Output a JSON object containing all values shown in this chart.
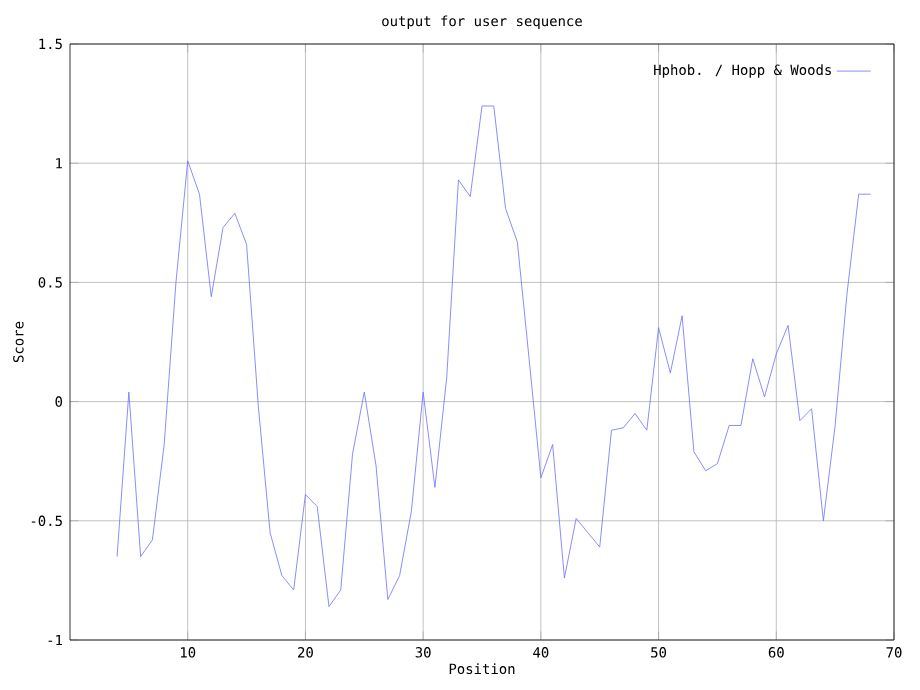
{
  "chart_data": {
    "type": "line",
    "title": "output for user sequence",
    "xlabel": "Position",
    "ylabel": "Score",
    "x": [
      4,
      5,
      6,
      7,
      8,
      9,
      10,
      11,
      12,
      13,
      14,
      15,
      16,
      17,
      18,
      19,
      20,
      21,
      22,
      23,
      24,
      25,
      26,
      27,
      28,
      29,
      30,
      31,
      32,
      33,
      34,
      35,
      36,
      37,
      38,
      39,
      40,
      41,
      42,
      43,
      44,
      45,
      46,
      47,
      48,
      49,
      50,
      51,
      52,
      53,
      54,
      55,
      56,
      57,
      58,
      59,
      60,
      61,
      62,
      63,
      64,
      65,
      66,
      67,
      68
    ],
    "series": [
      {
        "name": "Hphob. / Hopp & Woods",
        "color": "#6f6fff",
        "values": [
          -0.65,
          0.04,
          -0.65,
          -0.58,
          -0.18,
          0.5,
          1.01,
          0.87,
          0.44,
          0.73,
          0.79,
          0.66,
          -0.02,
          -0.55,
          -0.73,
          -0.79,
          -0.39,
          -0.44,
          -0.86,
          -0.79,
          -0.22,
          0.04,
          -0.27,
          -0.83,
          -0.73,
          -0.46,
          0.04,
          -0.36,
          0.1,
          0.93,
          0.86,
          1.24,
          1.24,
          0.81,
          0.67,
          0.18,
          -0.32,
          -0.18,
          -0.74,
          -0.49,
          -0.55,
          -0.61,
          -0.12,
          -0.11,
          -0.05,
          -0.12,
          0.31,
          0.12,
          0.36,
          -0.21,
          -0.29,
          -0.26,
          -0.1,
          -0.1,
          0.18,
          0.02,
          0.2,
          0.32,
          -0.08,
          -0.03,
          -0.5,
          -0.1,
          0.45,
          0.87,
          0.87
        ]
      }
    ],
    "xlim": [
      0,
      70
    ],
    "xticks": [
      10,
      20,
      30,
      40,
      50,
      60,
      70
    ],
    "ylim": [
      -1,
      1.5
    ],
    "yticks": [
      -1,
      -0.5,
      0,
      0.5,
      1,
      1.5
    ],
    "grid": true,
    "legend": "top right",
    "marker": "none",
    "line_style": "solid"
  }
}
